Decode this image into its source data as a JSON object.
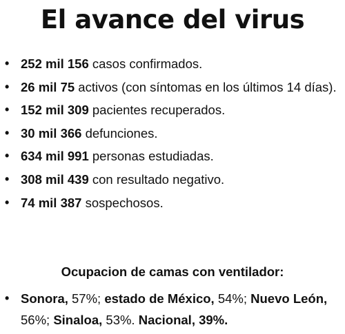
{
  "title": "El avance del virus",
  "bullet_glyph": "•",
  "stats": [
    {
      "number": "252 mil 156",
      "text": " casos confirmados."
    },
    {
      "number": "26 mil 75",
      "text": " activos (con síntomas en los últimos 14 días)."
    },
    {
      "number": "152 mil 309",
      "text": " pacientes recuperados."
    },
    {
      "number": "30 mil 366",
      "text": " defunciones."
    },
    {
      "number": "634 mil 991",
      "text": " personas estudiadas."
    },
    {
      "number": "308 mil 439",
      "text": " con resultado negativo."
    },
    {
      "number": "74 mil 387",
      "text": " sospechosos."
    }
  ],
  "ventilator": {
    "heading": "Ocupacion de camas con ventilador:",
    "states": [
      {
        "name": "Sonora,",
        "value": " 57%; "
      },
      {
        "name": "estado de México,",
        "value": " 54%; "
      },
      {
        "name": "Nuevo León,",
        "value": " 56%;  "
      },
      {
        "name": "Sinaloa,",
        "value": " 53%. "
      }
    ],
    "national_label": "Nacional,",
    "national_value": " 39%."
  }
}
